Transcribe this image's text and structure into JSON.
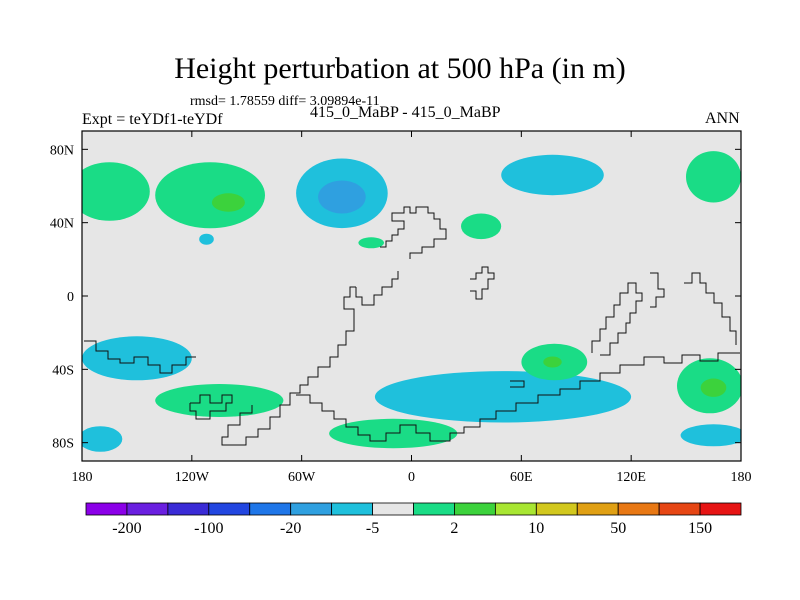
{
  "chart_data": {
    "type": "contour_map",
    "title": "Height perturbation at 500 hPa (in m)",
    "stats_line": "rmsd= 1.78559 diff= 3.09894e-11",
    "expt_label": "Expt = teYDf1-teYDf",
    "case_label": "415_0_MaBP - 415_0_MaBP",
    "season": "ANN",
    "lat_range": [
      -90,
      90
    ],
    "lon_range": [
      -180,
      180
    ],
    "lat_ticks": [
      {
        "value": 80,
        "label": "80N"
      },
      {
        "value": 40,
        "label": "40N"
      },
      {
        "value": 0,
        "label": "0"
      },
      {
        "value": -40,
        "label": "40S"
      },
      {
        "value": -80,
        "label": "80S"
      }
    ],
    "lon_ticks": [
      {
        "value": -180,
        "label": "180"
      },
      {
        "value": -120,
        "label": "120W"
      },
      {
        "value": -60,
        "label": "60W"
      },
      {
        "value": 0,
        "label": "0"
      },
      {
        "value": 60,
        "label": "60E"
      },
      {
        "value": 120,
        "label": "120E"
      },
      {
        "value": 180,
        "label": "180"
      }
    ],
    "colorbar": {
      "colors": [
        "#8b00e8",
        "#6a1fe0",
        "#3a2bd6",
        "#2246e0",
        "#1f76e8",
        "#2fa0e0",
        "#1fc0dc",
        "#e6e6e6",
        "#1adc86",
        "#3cd23c",
        "#a8e632",
        "#d2c81e",
        "#e0a014",
        "#e87814",
        "#e64614",
        "#e61414"
      ],
      "labels": [
        {
          "after_index": 0,
          "text": "-200"
        },
        {
          "after_index": 2,
          "text": "-100"
        },
        {
          "after_index": 4,
          "text": "-20"
        },
        {
          "after_index": 6,
          "text": "-5"
        },
        {
          "after_index": 8,
          "text": "2"
        },
        {
          "after_index": 10,
          "text": "10"
        },
        {
          "after_index": 12,
          "text": "50"
        },
        {
          "after_index": 14,
          "text": "150"
        }
      ]
    },
    "anomalies": [
      {
        "name": "nw-pacific-positive",
        "lon": -165,
        "lat": 57,
        "rlon": 22,
        "rlat": 16,
        "level": 8
      },
      {
        "name": "n-pacific-positive",
        "lon": -110,
        "lat": 55,
        "rlon": 30,
        "rlat": 18,
        "level": 8
      },
      {
        "name": "n-pacific-core",
        "lon": -100,
        "lat": 51,
        "rlon": 9,
        "rlat": 5,
        "level": 9
      },
      {
        "name": "n-atlantic-negative",
        "lon": -38,
        "lat": 56,
        "rlon": 25,
        "rlat": 19,
        "level": 6
      },
      {
        "name": "n-atlantic-core",
        "lon": -38,
        "lat": 54,
        "rlon": 13,
        "rlat": 9,
        "level": 5
      },
      {
        "name": "small-negative-pacific",
        "lon": -112,
        "lat": 31,
        "rlon": 4,
        "rlat": 3,
        "level": 6
      },
      {
        "name": "europe-positive-small",
        "lon": -22,
        "lat": 29,
        "rlon": 7,
        "rlat": 3,
        "level": 8
      },
      {
        "name": "mediterranean-positive",
        "lon": 38,
        "lat": 38,
        "rlon": 11,
        "rlat": 7,
        "level": 8
      },
      {
        "name": "siberia-negative",
        "lon": 77,
        "lat": 66,
        "rlon": 28,
        "rlat": 11,
        "level": 6
      },
      {
        "name": "ne-pacific-positive",
        "lon": 165,
        "lat": 65,
        "rlon": 15,
        "rlat": 14,
        "level": 8
      },
      {
        "name": "s-pacific-negative",
        "lon": -150,
        "lat": -34,
        "rlon": 30,
        "rlat": 12,
        "level": 6
      },
      {
        "name": "s-pacific-positive",
        "lon": -105,
        "lat": -57,
        "rlon": 35,
        "rlat": 9,
        "level": 8
      },
      {
        "name": "sw-pacific-negative",
        "lon": -170,
        "lat": -78,
        "rlon": 12,
        "rlat": 7,
        "level": 6
      },
      {
        "name": "s-atlantic-positive",
        "lon": -10,
        "lat": -75,
        "rlon": 35,
        "rlat": 8,
        "level": 8
      },
      {
        "name": "southern-ocean-negative",
        "lon": 50,
        "lat": -55,
        "rlon": 70,
        "rlat": 14,
        "level": 6
      },
      {
        "name": "s-indian-positive",
        "lon": 78,
        "lat": -36,
        "rlon": 18,
        "rlat": 10,
        "level": 8
      },
      {
        "name": "s-indian-core",
        "lon": 77,
        "lat": -36,
        "rlon": 5,
        "rlat": 3,
        "level": 9
      },
      {
        "name": "se-pacific-positive",
        "lon": 163,
        "lat": -49,
        "rlon": 18,
        "rlat": 15,
        "level": 8
      },
      {
        "name": "se-pacific-core",
        "lon": 165,
        "lat": -50,
        "rlon": 7,
        "rlat": 5,
        "level": 9
      },
      {
        "name": "se-negative-edge",
        "lon": 165,
        "lat": -76,
        "rlon": 18,
        "rlat": 6,
        "level": 6
      }
    ]
  }
}
